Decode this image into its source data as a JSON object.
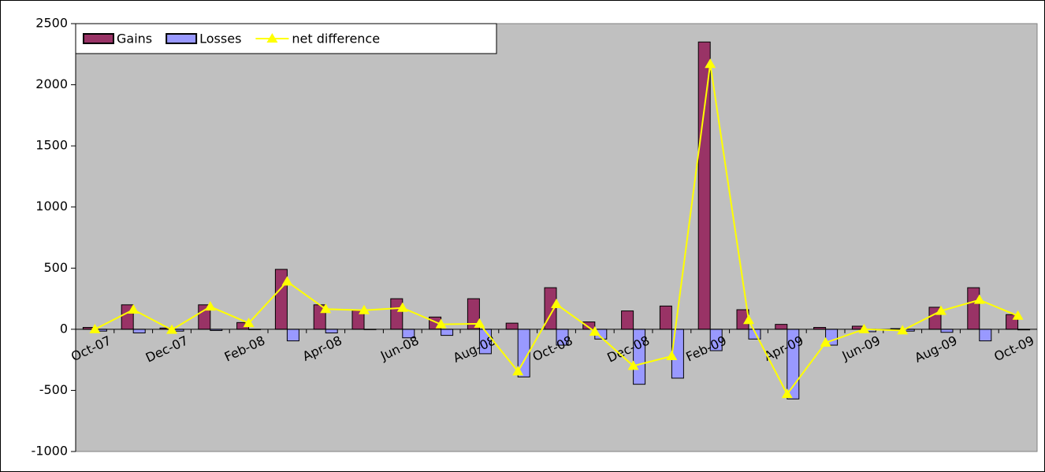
{
  "chart_data": {
    "type": "bar",
    "categories": [
      "Oct-07",
      null,
      "Dec-07",
      null,
      "Feb-08",
      null,
      "Apr-08",
      null,
      "Jun-08",
      null,
      "Aug-08",
      null,
      "Oct-08",
      null,
      "Dec-08",
      null,
      "Feb-09",
      null,
      "Apr-09",
      null,
      "Jun-09",
      null,
      "Aug-09",
      null,
      "Oct-09"
    ],
    "series": [
      {
        "name": "Gains",
        "type": "bar",
        "color": "#993366",
        "values": [
          15,
          200,
          10,
          200,
          55,
          490,
          200,
          155,
          250,
          100,
          250,
          50,
          340,
          60,
          150,
          190,
          2350,
          160,
          40,
          15,
          25,
          5,
          180,
          340,
          120
        ]
      },
      {
        "name": "Losses",
        "type": "bar",
        "color": "#9999ff",
        "values": [
          -15,
          -30,
          -15,
          -10,
          0,
          -95,
          -30,
          0,
          -70,
          -50,
          -200,
          -390,
          -130,
          -80,
          -450,
          -400,
          -175,
          -80,
          -570,
          -130,
          -20,
          -15,
          -25,
          -95,
          -5
        ]
      },
      {
        "name": "net difference",
        "type": "line",
        "color": "#ffff00",
        "values": [
          0,
          160,
          -5,
          185,
          50,
          390,
          165,
          155,
          175,
          40,
          45,
          -345,
          205,
          -20,
          -300,
          -220,
          2170,
          75,
          -530,
          -110,
          0,
          -10,
          150,
          240,
          110
        ]
      }
    ],
    "ylim": [
      -1000,
      2500
    ],
    "yticks": [
      -1000,
      -500,
      0,
      500,
      1000,
      1500,
      2000,
      2500
    ],
    "grid": false,
    "legend": "top-left"
  }
}
